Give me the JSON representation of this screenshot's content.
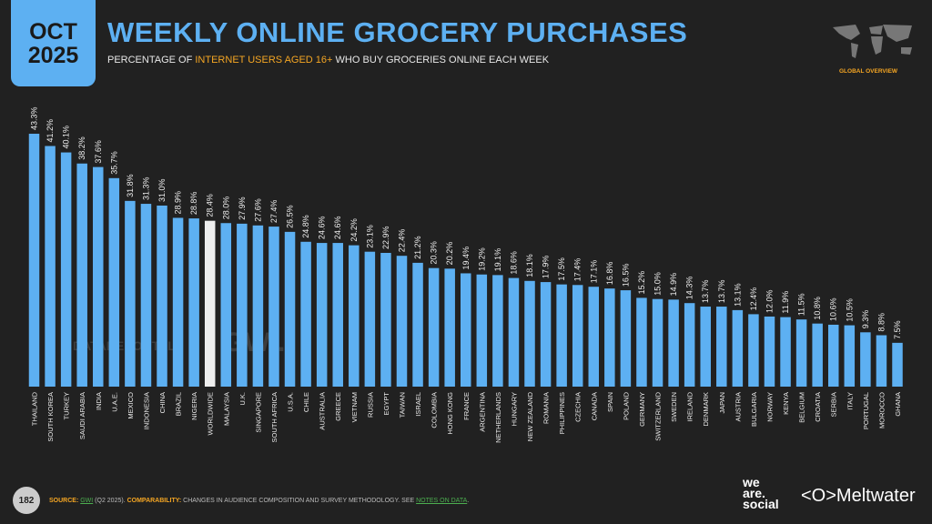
{
  "header": {
    "month": "OCT",
    "year": "2025",
    "title": "WEEKLY ONLINE GROCERY PURCHASES",
    "subtitle_pre": "PERCENTAGE OF ",
    "subtitle_hl": "INTERNET USERS AGED 16+",
    "subtitle_post": " WHO BUY GROCERIES ONLINE EACH WEEK",
    "overview": "GLOBAL OVERVIEW"
  },
  "footer": {
    "page": "182",
    "source_label": "SOURCE:",
    "source": "GWI",
    "source_detail": " (Q2 2025). ",
    "comp_label": "COMPARABILITY:",
    "comp_text": " CHANGES IN AUDIENCE COMPOSITION AND SURVEY METHODOLOGY. SEE ",
    "notes": "NOTES ON DATA",
    "notes_end": "."
  },
  "brands": {
    "was": "we are. social",
    "meltwater": "Meltwater"
  },
  "watermarks": {
    "a": "DATAREPORTAL",
    "b": "GWI."
  },
  "colors": {
    "bar": "#5db0f2",
    "highlight": "#eeeeee"
  },
  "chart_data": {
    "type": "bar",
    "title": "WEEKLY ONLINE GROCERY PURCHASES",
    "ylabel": "Percentage",
    "ylim": [
      0,
      45
    ],
    "grid": false,
    "highlight": "WORLDWIDE",
    "categories": [
      "THAILAND",
      "SOUTH KOREA",
      "TURKEY",
      "SAUDI ARABIA",
      "INDIA",
      "U.A.E.",
      "MEXICO",
      "INDONESIA",
      "CHINA",
      "BRAZIL",
      "NIGERIA",
      "WORLDWIDE",
      "MALAYSIA",
      "U.K.",
      "SINGAPORE",
      "SOUTH AFRICA",
      "U.S.A.",
      "CHILE",
      "AUSTRALIA",
      "GREECE",
      "VIETNAM",
      "RUSSIA",
      "EGYPT",
      "TAIWAN",
      "ISRAEL",
      "COLOMBIA",
      "HONG KONG",
      "FRANCE",
      "ARGENTINA",
      "NETHERLANDS",
      "HUNGARY",
      "NEW ZEALAND",
      "ROMANIA",
      "PHILIPPINES",
      "CZECHIA",
      "CANADA",
      "SPAIN",
      "POLAND",
      "GERMANY",
      "SWITZERLAND",
      "SWEDEN",
      "IRELAND",
      "DENMARK",
      "JAPAN",
      "AUSTRIA",
      "BULGARIA",
      "NORWAY",
      "KENYA",
      "BELGIUM",
      "CROATIA",
      "SERBIA",
      "ITALY",
      "PORTUGAL",
      "MOROCCO",
      "GHANA"
    ],
    "values": [
      43.3,
      41.2,
      40.1,
      38.2,
      37.6,
      35.7,
      31.8,
      31.3,
      31.0,
      28.9,
      28.8,
      28.4,
      28.0,
      27.9,
      27.6,
      27.4,
      26.5,
      24.8,
      24.6,
      24.6,
      24.2,
      23.1,
      22.9,
      22.4,
      21.2,
      20.3,
      20.2,
      19.4,
      19.2,
      19.1,
      18.6,
      18.1,
      17.9,
      17.5,
      17.4,
      17.1,
      16.8,
      16.5,
      15.2,
      15.0,
      14.9,
      14.3,
      13.7,
      13.7,
      13.1,
      12.4,
      12.0,
      11.9,
      11.5,
      10.8,
      10.6,
      10.5,
      9.3,
      8.8,
      7.5
    ]
  }
}
